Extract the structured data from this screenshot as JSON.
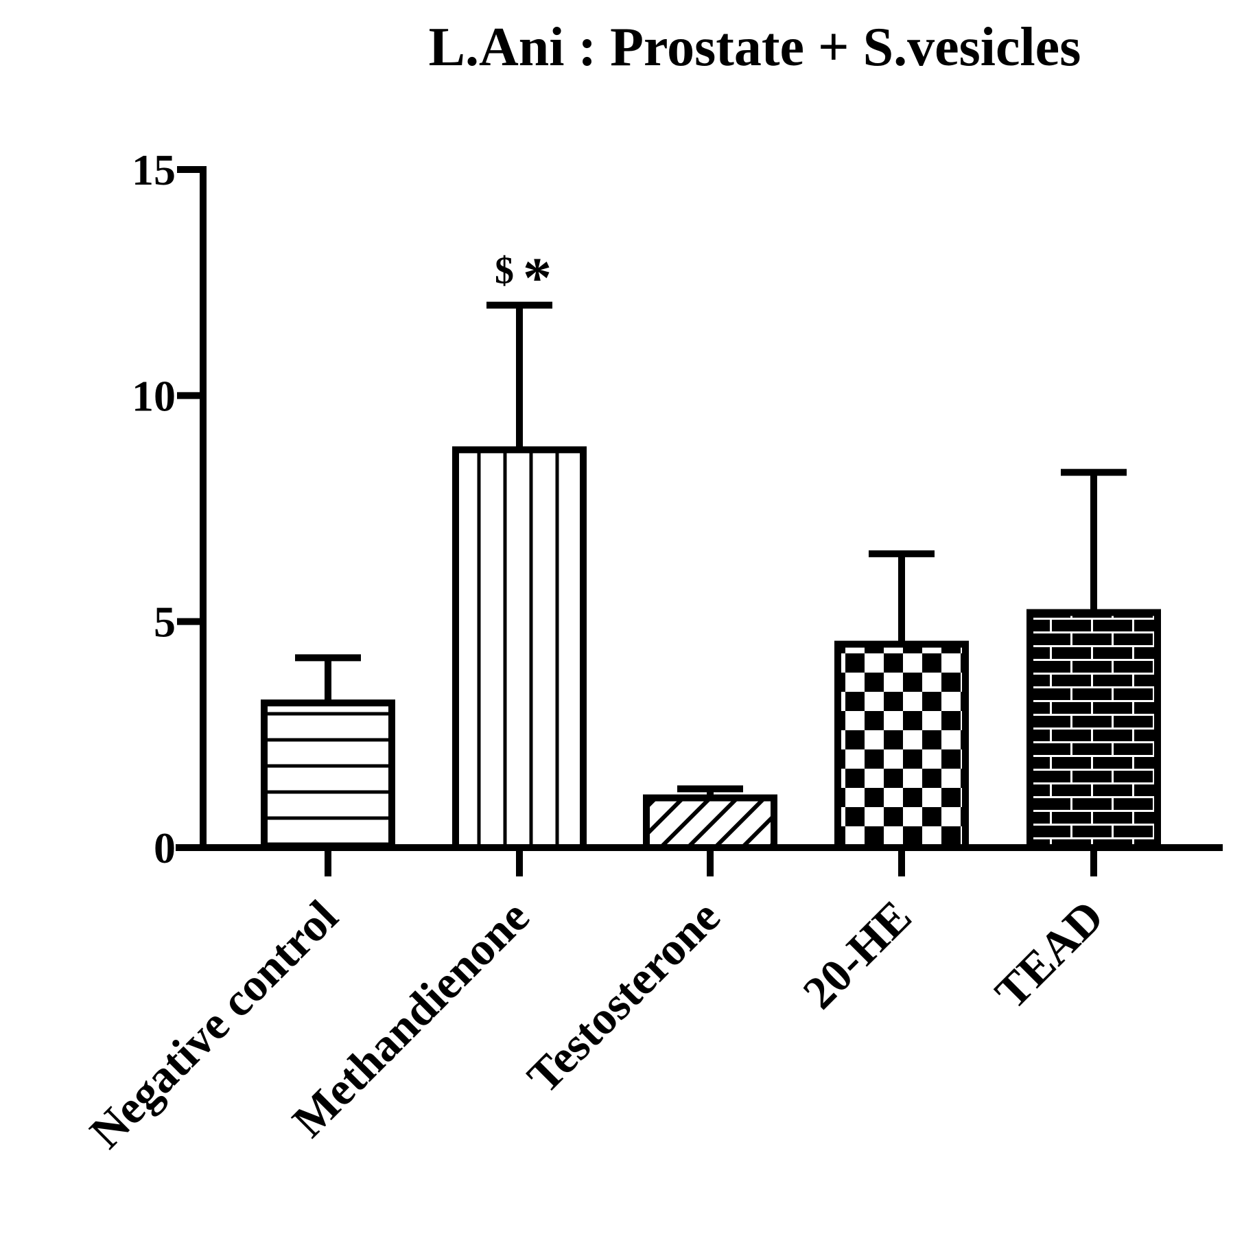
{
  "colors": {
    "ink": "#000000",
    "background": "#ffffff"
  },
  "chart_data": {
    "type": "bar",
    "title": "L.Ani : Prostate + S.vesicles",
    "xlabel": "",
    "ylabel": "",
    "ylim": [
      0,
      15
    ],
    "yticks": [
      "0",
      "5",
      "10",
      "15"
    ],
    "categories": [
      "Negative control",
      "Methandienone",
      "Testosterone",
      "20-HE",
      "TEAD"
    ],
    "values": [
      3.2,
      8.8,
      1.1,
      4.5,
      5.2
    ],
    "error_upper": [
      1.0,
      3.2,
      0.2,
      2.0,
      3.1
    ],
    "patterns": [
      "horizontal-lines",
      "vertical-lines",
      "diagonal-hatch",
      "checkerboard",
      "brick"
    ],
    "annotations": [
      {
        "category": "Methandienone",
        "text": "$"
      },
      {
        "category": "Methandienone",
        "text": "*"
      }
    ],
    "grid": false,
    "legend": "none"
  }
}
